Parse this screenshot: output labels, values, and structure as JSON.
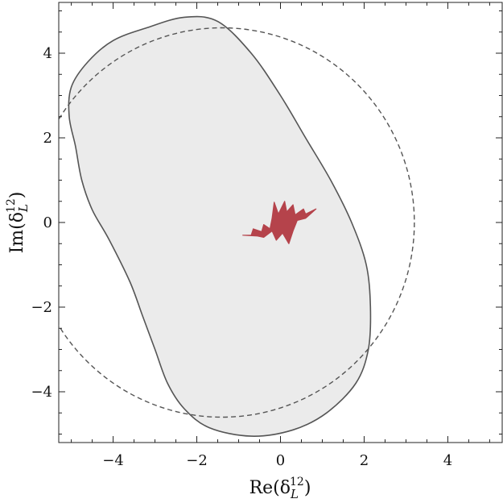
{
  "chart_data": {
    "type": "contour-region",
    "title": "",
    "xlabel": "Re(δ",
    "ylabel": "Im(δ",
    "label_subscript": "L",
    "label_superscript": "12",
    "label_close": ")",
    "xlim": [
      -5.3,
      5.3
    ],
    "ylim": [
      -5.2,
      5.2
    ],
    "x_ticks": [
      -4,
      -2,
      0,
      2,
      4
    ],
    "y_ticks": [
      -4,
      -2,
      0,
      2,
      4
    ],
    "x_tick_labels": [
      "−4",
      "−2",
      "0",
      "2",
      "4"
    ],
    "y_tick_labels": [
      "−4",
      "−2",
      "0",
      "2",
      "4"
    ],
    "grid": false,
    "colors": {
      "region_fill": "#ebebeb",
      "region_stroke": "#555555",
      "circle_stroke": "#555555",
      "core_fill": "#b5434b"
    },
    "series": [
      {
        "kind": "closed-region",
        "points": [
          [
            -2.3,
            4.85
          ],
          [
            -3.2,
            4.6
          ],
          [
            -4.0,
            4.3
          ],
          [
            -4.6,
            3.8
          ],
          [
            -5.0,
            3.2
          ],
          [
            -5.05,
            2.5
          ],
          [
            -4.9,
            1.8
          ],
          [
            -4.75,
            1.0
          ],
          [
            -4.5,
            0.3
          ],
          [
            -4.1,
            -0.4
          ],
          [
            -3.6,
            -1.4
          ],
          [
            -3.3,
            -2.2
          ],
          [
            -3.0,
            -3.0
          ],
          [
            -2.7,
            -3.8
          ],
          [
            -2.3,
            -4.4
          ],
          [
            -1.7,
            -4.85
          ],
          [
            -0.7,
            -5.05
          ],
          [
            0.3,
            -4.9
          ],
          [
            1.1,
            -4.5
          ],
          [
            1.8,
            -3.8
          ],
          [
            2.1,
            -3.0
          ],
          [
            2.15,
            -2.0
          ],
          [
            2.05,
            -1.0
          ],
          [
            1.7,
            0.0
          ],
          [
            1.2,
            1.0
          ],
          [
            0.6,
            2.0
          ],
          [
            0.0,
            3.0
          ],
          [
            -0.7,
            4.0
          ],
          [
            -1.5,
            4.75
          ]
        ]
      },
      {
        "kind": "dashed-circle",
        "center": [
          -1.4,
          0.0
        ],
        "radius": 4.6
      },
      {
        "kind": "filled-core",
        "points": [
          [
            -0.9,
            -0.3
          ],
          [
            -0.7,
            -0.3
          ],
          [
            -0.65,
            -0.15
          ],
          [
            -0.45,
            -0.22
          ],
          [
            -0.4,
            -0.05
          ],
          [
            -0.25,
            -0.15
          ],
          [
            -0.2,
            0.1
          ],
          [
            -0.15,
            0.48
          ],
          [
            -0.05,
            0.2
          ],
          [
            0.1,
            0.5
          ],
          [
            0.15,
            0.25
          ],
          [
            0.3,
            0.42
          ],
          [
            0.35,
            0.18
          ],
          [
            0.55,
            0.32
          ],
          [
            0.6,
            0.2
          ],
          [
            0.85,
            0.32
          ],
          [
            0.6,
            0.1
          ],
          [
            0.4,
            0.05
          ],
          [
            0.3,
            -0.2
          ],
          [
            0.2,
            -0.5
          ],
          [
            0.05,
            -0.25
          ],
          [
            -0.1,
            -0.42
          ],
          [
            -0.2,
            -0.2
          ],
          [
            -0.4,
            -0.35
          ],
          [
            -0.55,
            -0.32
          ]
        ]
      }
    ]
  }
}
